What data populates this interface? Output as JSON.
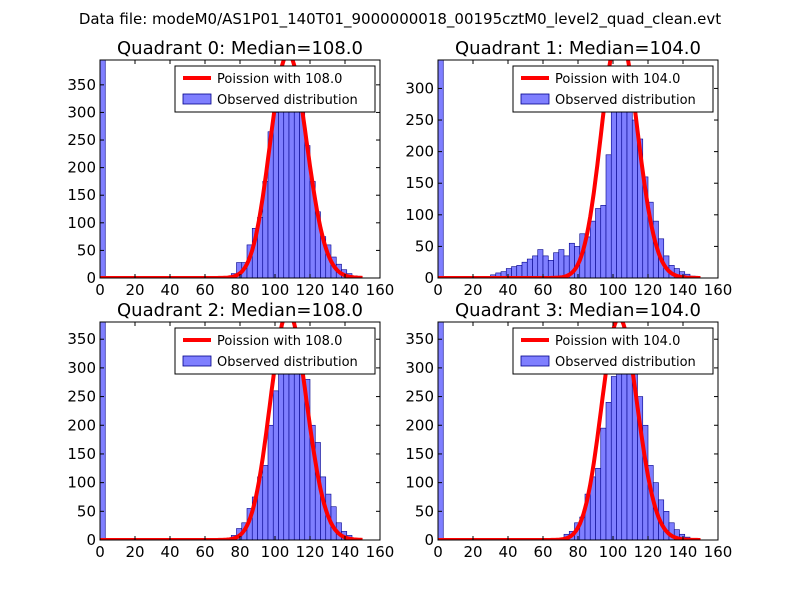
{
  "figure": {
    "suptitle": "Data file: modeM0/AS1P01_140T01_9000000018_00195cztM0_level2_quad_clean.evt"
  },
  "style": {
    "bar_fill": "#7f7fff",
    "bar_edge": "#00008b",
    "curve_color": "#ff0000",
    "frame_color": "#000000"
  },
  "chart_data": [
    {
      "type": "bar",
      "title": "Quadrant 0: Median=108.0",
      "median": 108.0,
      "xlim": [
        0,
        160
      ],
      "ylim": [
        0,
        395
      ],
      "xticks": [
        0,
        20,
        40,
        60,
        80,
        100,
        120,
        140,
        160
      ],
      "yticks": [
        0,
        50,
        100,
        150,
        200,
        250,
        300,
        350
      ],
      "bin_width": 3,
      "bins": [
        [
          0,
          395
        ],
        [
          75,
          8
        ],
        [
          78,
          28
        ],
        [
          81,
          28
        ],
        [
          84,
          60
        ],
        [
          87,
          90
        ],
        [
          90,
          110
        ],
        [
          93,
          175
        ],
        [
          96,
          265
        ],
        [
          99,
          300
        ],
        [
          102,
          370
        ],
        [
          105,
          325
        ],
        [
          108,
          340
        ],
        [
          111,
          355
        ],
        [
          114,
          320
        ],
        [
          117,
          240
        ],
        [
          120,
          175
        ],
        [
          123,
          120
        ],
        [
          126,
          75
        ],
        [
          129,
          60
        ],
        [
          132,
          38
        ],
        [
          135,
          25
        ],
        [
          138,
          15
        ],
        [
          141,
          8
        ],
        [
          144,
          4
        ]
      ],
      "legend": {
        "line": "Poission with 108.0",
        "bars": "Observed distribution"
      }
    },
    {
      "type": "bar",
      "title": "Quadrant 1: Median=104.0",
      "median": 104.0,
      "xlim": [
        0,
        160
      ],
      "ylim": [
        0,
        345
      ],
      "xticks": [
        0,
        20,
        40,
        60,
        80,
        100,
        120,
        140,
        160
      ],
      "yticks": [
        0,
        50,
        100,
        150,
        200,
        250,
        300
      ],
      "bin_width": 3,
      "bins": [
        [
          0,
          345
        ],
        [
          30,
          5
        ],
        [
          33,
          8
        ],
        [
          36,
          10
        ],
        [
          39,
          15
        ],
        [
          42,
          18
        ],
        [
          45,
          20
        ],
        [
          48,
          25
        ],
        [
          51,
          30
        ],
        [
          54,
          35
        ],
        [
          57,
          45
        ],
        [
          60,
          35
        ],
        [
          63,
          28
        ],
        [
          66,
          40
        ],
        [
          69,
          45
        ],
        [
          72,
          35
        ],
        [
          75,
          55
        ],
        [
          78,
          50
        ],
        [
          81,
          70
        ],
        [
          84,
          65
        ],
        [
          87,
          90
        ],
        [
          90,
          110
        ],
        [
          93,
          115
        ],
        [
          96,
          195
        ],
        [
          99,
          270
        ],
        [
          102,
          310
        ],
        [
          105,
          325
        ],
        [
          108,
          280
        ],
        [
          111,
          250
        ],
        [
          114,
          220
        ],
        [
          117,
          160
        ],
        [
          120,
          120
        ],
        [
          123,
          90
        ],
        [
          126,
          62
        ],
        [
          129,
          35
        ],
        [
          132,
          20
        ],
        [
          135,
          15
        ],
        [
          138,
          10
        ],
        [
          141,
          6
        ],
        [
          144,
          3
        ]
      ],
      "legend": {
        "line": "Poission with 104.0",
        "bars": "Observed distribution"
      }
    },
    {
      "type": "bar",
      "title": "Quadrant 2: Median=108.0",
      "median": 108.0,
      "xlim": [
        0,
        160
      ],
      "ylim": [
        0,
        380
      ],
      "xticks": [
        0,
        20,
        40,
        60,
        80,
        100,
        120,
        140,
        160
      ],
      "yticks": [
        0,
        50,
        100,
        150,
        200,
        250,
        300,
        350
      ],
      "bin_width": 3,
      "bins": [
        [
          0,
          380
        ],
        [
          75,
          8
        ],
        [
          78,
          20
        ],
        [
          81,
          30
        ],
        [
          84,
          55
        ],
        [
          87,
          75
        ],
        [
          90,
          110
        ],
        [
          93,
          130
        ],
        [
          96,
          200
        ],
        [
          99,
          260
        ],
        [
          102,
          300
        ],
        [
          105,
          330
        ],
        [
          108,
          365
        ],
        [
          111,
          310
        ],
        [
          114,
          310
        ],
        [
          117,
          280
        ],
        [
          120,
          200
        ],
        [
          123,
          170
        ],
        [
          126,
          110
        ],
        [
          129,
          80
        ],
        [
          132,
          58
        ],
        [
          135,
          30
        ],
        [
          138,
          15
        ],
        [
          141,
          8
        ],
        [
          144,
          3
        ]
      ],
      "legend": {
        "line": "Poission with 108.0",
        "bars": "Observed distribution"
      }
    },
    {
      "type": "bar",
      "title": "Quadrant 3: Median=104.0",
      "median": 104.0,
      "xlim": [
        0,
        160
      ],
      "ylim": [
        0,
        380
      ],
      "xticks": [
        0,
        20,
        40,
        60,
        80,
        100,
        120,
        140,
        160
      ],
      "yticks": [
        0,
        50,
        100,
        150,
        200,
        250,
        300,
        350
      ],
      "bin_width": 3,
      "bins": [
        [
          0,
          380
        ],
        [
          72,
          10
        ],
        [
          75,
          15
        ],
        [
          78,
          30
        ],
        [
          81,
          40
        ],
        [
          84,
          80
        ],
        [
          87,
          110
        ],
        [
          90,
          125
        ],
        [
          93,
          195
        ],
        [
          96,
          240
        ],
        [
          99,
          285
        ],
        [
          102,
          335
        ],
        [
          105,
          320
        ],
        [
          108,
          350
        ],
        [
          111,
          300
        ],
        [
          114,
          250
        ],
        [
          117,
          200
        ],
        [
          120,
          130
        ],
        [
          123,
          100
        ],
        [
          126,
          70
        ],
        [
          129,
          50
        ],
        [
          132,
          30
        ],
        [
          135,
          18
        ],
        [
          138,
          10
        ],
        [
          141,
          5
        ],
        [
          144,
          2
        ]
      ],
      "legend": {
        "line": "Poission with 104.0",
        "bars": "Observed distribution"
      }
    }
  ]
}
